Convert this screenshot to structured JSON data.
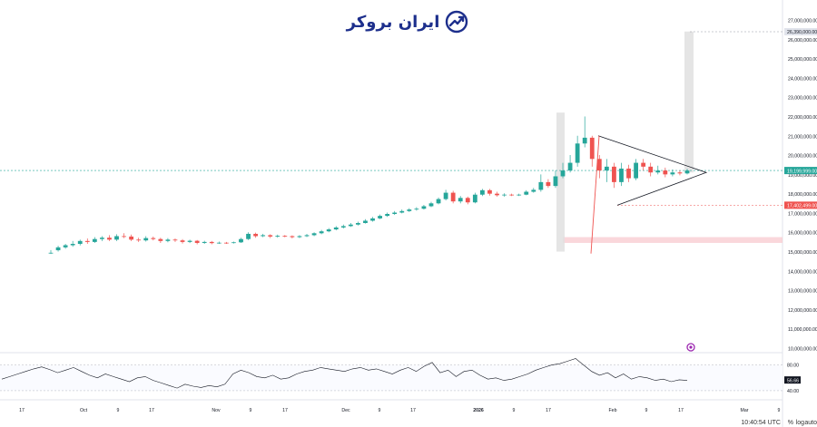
{
  "brand": {
    "name": "ایران بروکر",
    "accent": "#1d2f8c"
  },
  "status": {
    "time": "10:40:54 UTC",
    "percent_label": "%",
    "log_label": "log",
    "auto_label": "auto"
  },
  "colors": {
    "up": "#26a69a",
    "down": "#ef5350",
    "grid": "#f0f3fa",
    "text": "#131722"
  },
  "chart_data": {
    "type": "candlestick",
    "price_axis": {
      "min": 10000000,
      "max": 27000000,
      "step": 1000000,
      "ticks": [
        "27,000,000.00",
        "26,000,000.00",
        "25,000,000.00",
        "24,000,000.00",
        "23,000,000.00",
        "22,000,000.00",
        "21,000,000.00",
        "20,000,000.00",
        "19,000,000.00",
        "18,000,000.00",
        "17,000,000.00",
        "16,000,000.00",
        "15,000,000.00",
        "14,000,000.00",
        "13,000,000.00",
        "12,000,000.00",
        "11,000,000.00",
        "10,000,000.00"
      ],
      "price_tags": [
        {
          "value": 26390000,
          "label": "26,390,000.00",
          "color": "#e0e3eb",
          "text_color": "#131722"
        },
        {
          "value": 19199999,
          "label": "19,199,999.00",
          "color": "#26a69a",
          "text_color": "#ffffff"
        },
        {
          "value": 17402499,
          "label": "17,402,499.00",
          "color": "#ef5350",
          "text_color": "#ffffff"
        }
      ]
    },
    "time_axis": {
      "ticks": [
        "17",
        "Oct",
        "9",
        "17",
        "Nov",
        "9",
        "17",
        "Dec",
        "9",
        "17",
        "2026",
        "9",
        "17",
        "Feb",
        "9",
        "17",
        "Mar",
        "9"
      ],
      "positions": [
        24,
        92,
        130,
        167,
        238,
        276,
        314,
        381,
        418,
        455,
        527,
        566,
        604,
        675,
        712,
        750,
        820,
        858
      ]
    },
    "candles": [
      [
        14.94,
        14.94,
        15.08,
        14.88
      ],
      [
        15.07,
        15.22,
        15.3,
        15.0
      ],
      [
        15.22,
        15.33,
        15.4,
        15.15
      ],
      [
        15.33,
        15.4,
        15.55,
        15.25
      ],
      [
        15.4,
        15.55,
        15.62,
        15.32
      ],
      [
        15.55,
        15.5,
        15.68,
        15.4
      ],
      [
        15.5,
        15.65,
        15.75,
        15.45
      ],
      [
        15.65,
        15.72,
        15.8,
        15.55
      ],
      [
        15.72,
        15.62,
        15.85,
        15.55
      ],
      [
        15.62,
        15.8,
        15.9,
        15.55
      ],
      [
        15.8,
        15.78,
        15.95,
        15.7
      ],
      [
        15.78,
        15.62,
        15.88,
        15.55
      ],
      [
        15.62,
        15.58,
        15.72,
        15.5
      ],
      [
        15.58,
        15.7,
        15.8,
        15.52
      ],
      [
        15.7,
        15.65,
        15.78,
        15.58
      ],
      [
        15.65,
        15.55,
        15.72,
        15.45
      ],
      [
        15.55,
        15.62,
        15.7,
        15.48
      ],
      [
        15.62,
        15.58,
        15.68,
        15.5
      ],
      [
        15.58,
        15.5,
        15.65,
        15.42
      ],
      [
        15.5,
        15.56,
        15.62,
        15.44
      ],
      [
        15.56,
        15.45,
        15.6,
        15.38
      ],
      [
        15.45,
        15.5,
        15.56,
        15.4
      ],
      [
        15.5,
        15.44,
        15.55,
        15.38
      ],
      [
        15.44,
        15.46,
        15.52,
        15.4
      ],
      [
        15.46,
        15.45,
        15.5,
        15.4
      ],
      [
        15.45,
        15.48,
        15.52,
        15.42
      ],
      [
        15.48,
        15.65,
        15.72,
        15.45
      ],
      [
        15.65,
        15.92,
        16.0,
        15.6
      ],
      [
        15.92,
        15.8,
        15.98,
        15.72
      ],
      [
        15.8,
        15.85,
        15.92,
        15.75
      ],
      [
        15.85,
        15.78,
        15.9,
        15.7
      ],
      [
        15.78,
        15.82,
        15.88,
        15.72
      ],
      [
        15.82,
        15.8,
        15.86,
        15.74
      ],
      [
        15.8,
        15.75,
        15.84,
        15.68
      ],
      [
        15.75,
        15.8,
        15.85,
        15.7
      ],
      [
        15.8,
        15.85,
        15.92,
        15.75
      ],
      [
        15.85,
        15.95,
        16.0,
        15.8
      ],
      [
        15.95,
        16.05,
        16.12,
        15.9
      ],
      [
        16.05,
        16.15,
        16.22,
        16.0
      ],
      [
        16.15,
        16.25,
        16.32,
        16.1
      ],
      [
        16.25,
        16.32,
        16.4,
        16.2
      ],
      [
        16.32,
        16.4,
        16.48,
        16.28
      ],
      [
        16.4,
        16.48,
        16.55,
        16.35
      ],
      [
        16.48,
        16.6,
        16.68,
        16.45
      ],
      [
        16.6,
        16.72,
        16.8,
        16.55
      ],
      [
        16.72,
        16.85,
        16.92,
        16.68
      ],
      [
        16.85,
        16.95,
        17.02,
        16.8
      ],
      [
        16.95,
        17.02,
        17.1,
        16.9
      ],
      [
        17.02,
        17.1,
        17.18,
        16.98
      ],
      [
        17.1,
        17.18,
        17.25,
        17.05
      ],
      [
        17.18,
        17.22,
        17.3,
        17.12
      ],
      [
        17.22,
        17.35,
        17.42,
        17.18
      ],
      [
        17.35,
        17.5,
        17.58,
        17.3
      ],
      [
        17.5,
        17.72,
        17.8,
        17.45
      ],
      [
        17.72,
        18.05,
        18.2,
        17.65
      ],
      [
        18.05,
        17.6,
        18.15,
        17.5
      ],
      [
        17.6,
        17.78,
        17.88,
        17.5
      ],
      [
        17.78,
        17.55,
        17.85,
        17.45
      ],
      [
        17.55,
        17.95,
        18.05,
        17.5
      ],
      [
        17.95,
        18.18,
        18.25,
        17.88
      ],
      [
        18.18,
        18.0,
        18.25,
        17.9
      ],
      [
        18.0,
        17.92,
        18.1,
        17.85
      ],
      [
        17.92,
        17.95,
        18.02,
        17.85
      ],
      [
        17.95,
        17.92,
        18.0,
        17.88
      ],
      [
        17.92,
        17.95,
        18.0,
        17.88
      ],
      [
        17.95,
        18.1,
        18.18,
        17.92
      ],
      [
        18.1,
        18.2,
        18.3,
        18.05
      ],
      [
        18.2,
        18.6,
        19.0,
        18.1
      ],
      [
        18.6,
        18.4,
        18.75,
        18.3
      ],
      [
        18.4,
        18.9,
        19.2,
        18.3
      ],
      [
        18.9,
        19.2,
        19.6,
        18.8
      ],
      [
        19.2,
        19.6,
        20.0,
        19.1
      ],
      [
        19.6,
        20.6,
        21.0,
        19.4
      ],
      [
        20.6,
        20.9,
        22.0,
        20.4
      ],
      [
        20.9,
        19.8,
        21.0,
        19.4
      ],
      [
        19.8,
        19.2,
        20.0,
        18.8
      ],
      [
        19.2,
        19.4,
        19.8,
        18.6
      ],
      [
        19.4,
        18.6,
        19.6,
        18.3
      ],
      [
        18.6,
        19.3,
        19.6,
        18.4
      ],
      [
        19.3,
        18.8,
        19.5,
        18.6
      ],
      [
        18.8,
        19.6,
        19.8,
        18.7
      ],
      [
        19.6,
        19.4,
        19.8,
        19.2
      ],
      [
        19.4,
        19.1,
        19.6,
        18.9
      ],
      [
        19.1,
        19.2,
        19.45,
        19.0
      ],
      [
        19.2,
        19.0,
        19.35,
        18.85
      ],
      [
        19.0,
        19.1,
        19.25,
        18.9
      ],
      [
        19.1,
        19.05,
        19.2,
        18.95
      ],
      [
        19.05,
        19.2,
        19.28,
        19.0
      ]
    ],
    "rsi": {
      "levels": [
        "80.00",
        "56.66",
        "40.00"
      ],
      "current": "56.66"
    }
  }
}
